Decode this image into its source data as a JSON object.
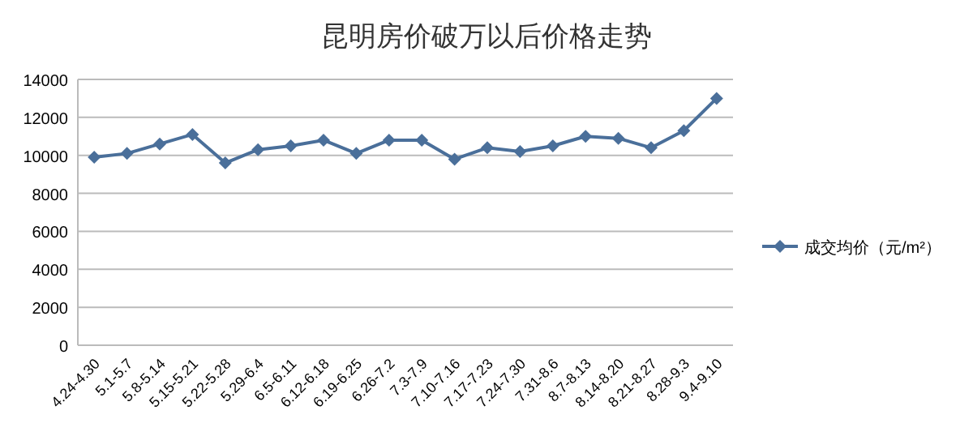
{
  "chart_data": {
    "type": "line",
    "title": "昆明房价破万以后价格走势",
    "categories": [
      "4.24-4.30",
      "5.1-5.7",
      "5.8-5.14",
      "5.15-5.21",
      "5.22-5.28",
      "5.29-6.4",
      "6.5-6.11",
      "6.12-6.18",
      "6.19-6.25",
      "6.26-7.2",
      "7.3-7.9",
      "7.10-7.16",
      "7.17-7.23",
      "7.24-7.30",
      "7.31-8.6",
      "8.7-8.13",
      "8.14-8.20",
      "8.21-8.27",
      "8.28-9.3",
      "9.4-9.10"
    ],
    "series": [
      {
        "name": "成交均价（元/m²）",
        "color": "#4a6f9a",
        "values": [
          9900,
          10100,
          10600,
          11100,
          9600,
          10300,
          10500,
          10800,
          10100,
          10800,
          10800,
          9800,
          10400,
          10200,
          10500,
          11000,
          10900,
          10400,
          11300,
          13000
        ]
      }
    ],
    "ylim": [
      0,
      14000
    ],
    "yticks": [
      0,
      2000,
      4000,
      6000,
      8000,
      10000,
      12000,
      14000
    ],
    "grid": "y",
    "legend": "right",
    "marker": "diamond",
    "line_style": "solid"
  }
}
